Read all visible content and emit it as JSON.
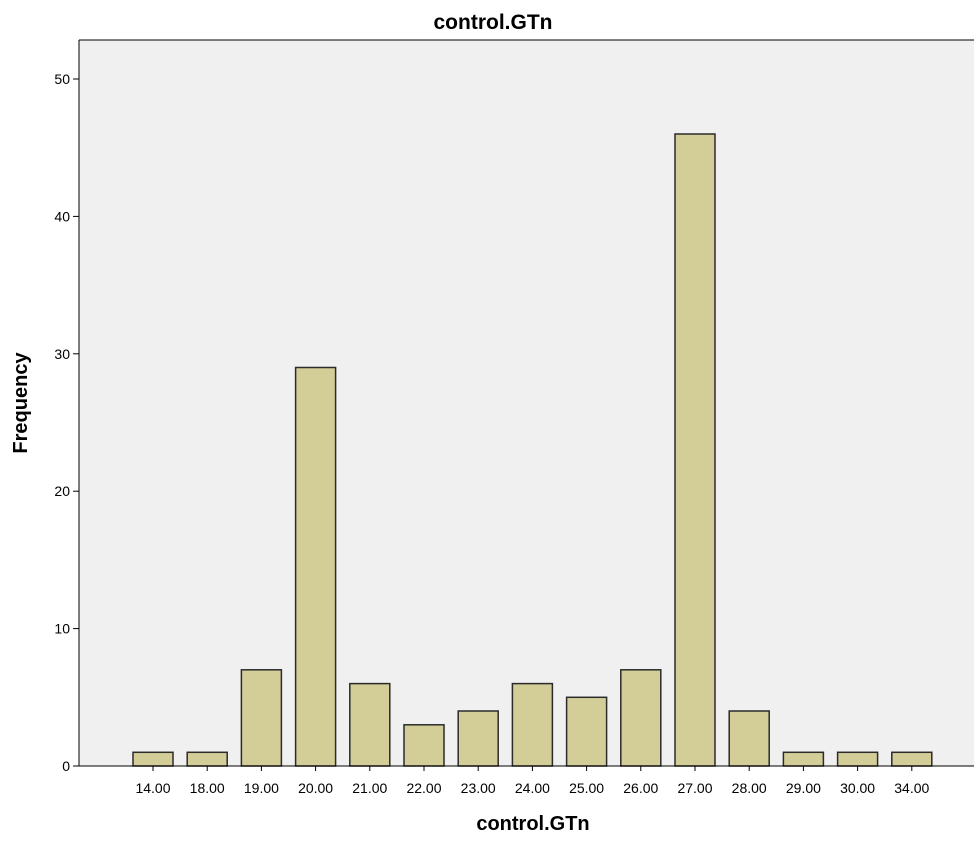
{
  "chart_data": {
    "type": "bar",
    "title": "control.GTn",
    "xlabel": "control.GTn",
    "ylabel": "Frequency",
    "categories": [
      "14.00",
      "18.00",
      "19.00",
      "20.00",
      "21.00",
      "22.00",
      "23.00",
      "24.00",
      "25.00",
      "26.00",
      "27.00",
      "28.00",
      "29.00",
      "30.00",
      "34.00"
    ],
    "values": [
      1,
      1,
      7,
      29,
      6,
      3,
      4,
      6,
      5,
      7,
      46,
      4,
      1,
      1,
      1
    ],
    "ylim": [
      0,
      50
    ],
    "yticks": [
      0,
      10,
      20,
      30,
      40,
      50
    ],
    "grid": false,
    "legend": "none",
    "colors": {
      "bar_fill": "#D3CE98",
      "bar_stroke": "#2b2b2b",
      "plot_background": "#F0F0F0",
      "axis": "#000000"
    }
  }
}
